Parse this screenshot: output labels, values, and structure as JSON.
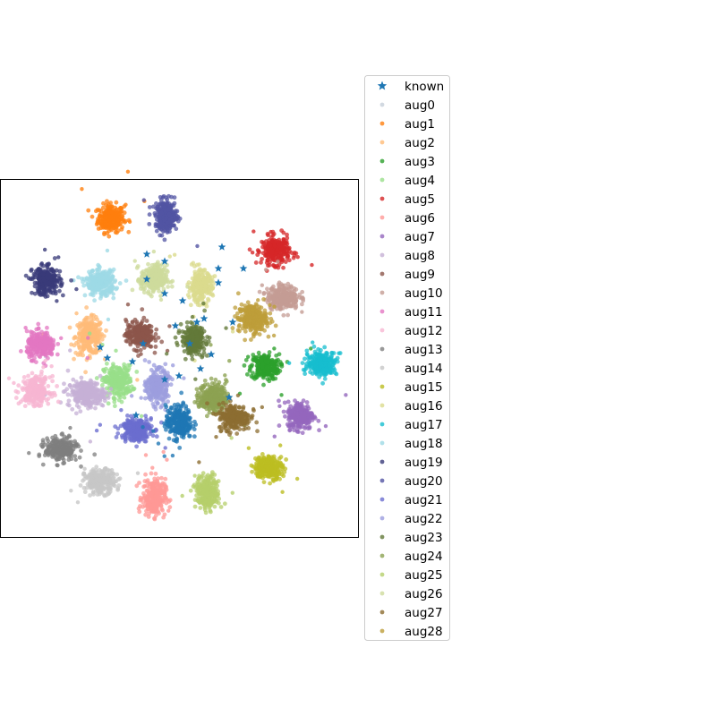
{
  "chart_data": {
    "type": "scatter",
    "title": "",
    "xlabel": "",
    "ylabel": "",
    "xlim": [
      -50,
      50
    ],
    "ylim": [
      -50,
      50
    ],
    "grid": false,
    "axis_ticks": false,
    "legend_placement": "outside right",
    "series": [
      {
        "name": "known",
        "marker": "star",
        "color": "#1f77b4",
        "points": [
          [
            -9,
            22
          ],
          [
            -4,
            27
          ],
          [
            1,
            16
          ],
          [
            11,
            21
          ],
          [
            11,
            25
          ],
          [
            15,
            10
          ],
          [
            5,
            10
          ],
          [
            -10,
            4
          ],
          [
            -20,
            0
          ],
          [
            -13,
            -1
          ],
          [
            -4,
            18
          ],
          [
            14,
            -11
          ],
          [
            -9,
            29
          ],
          [
            12,
            31
          ],
          [
            7,
            11
          ],
          [
            -1,
            9
          ],
          [
            3,
            4
          ],
          [
            -4,
            -6
          ],
          [
            18,
            25
          ],
          [
            -22,
            3
          ],
          [
            -12,
            -16
          ],
          [
            0,
            -5
          ],
          [
            6,
            -3
          ],
          [
            9,
            1
          ]
        ]
      },
      {
        "name": "aug0",
        "marker": "dot",
        "color": "#c7cfd9",
        "points": []
      },
      {
        "name": "aug1",
        "marker": "dot",
        "color": "#ff7f0e",
        "cluster": {
          "cx": -19,
          "cy": 39,
          "sx": 3.3,
          "sy": 3.5
        }
      },
      {
        "name": "aug2",
        "marker": "dot",
        "color": "#ffbb78",
        "cluster": {
          "cx": -25,
          "cy": 6,
          "sx": 3.5,
          "sy": 4.5
        }
      },
      {
        "name": "aug3",
        "marker": "dot",
        "color": "#2ca02c",
        "cluster": {
          "cx": 24,
          "cy": -2.5,
          "sx": 3.6,
          "sy": 3.2
        }
      },
      {
        "name": "aug4",
        "marker": "dot",
        "color": "#98df8a",
        "cluster": {
          "cx": -17,
          "cy": -6.5,
          "sx": 3.6,
          "sy": 4.0
        }
      },
      {
        "name": "aug5",
        "marker": "dot",
        "color": "#d62728",
        "cluster": {
          "cx": 27,
          "cy": 30,
          "sx": 3.5,
          "sy": 3.5
        }
      },
      {
        "name": "aug6",
        "marker": "dot",
        "color": "#ff9896",
        "cluster": {
          "cx": -7,
          "cy": -39,
          "sx": 2.9,
          "sy": 4.7
        }
      },
      {
        "name": "aug7",
        "marker": "dot",
        "color": "#9467bd",
        "cluster": {
          "cx": 34,
          "cy": -16,
          "sx": 3.3,
          "sy": 3.5
        }
      },
      {
        "name": "aug8",
        "marker": "dot",
        "color": "#c5b0d5",
        "cluster": {
          "cx": -26,
          "cy": -10,
          "sx": 4.6,
          "sy": 3.3
        }
      },
      {
        "name": "aug9",
        "marker": "dot",
        "color": "#8c564b",
        "cluster": {
          "cx": -11,
          "cy": 6.5,
          "sx": 3.4,
          "sy": 3.6
        }
      },
      {
        "name": "aug10",
        "marker": "dot",
        "color": "#c49c94",
        "cluster": {
          "cx": 29,
          "cy": 17,
          "sx": 4.0,
          "sy": 3.0
        }
      },
      {
        "name": "aug11",
        "marker": "dot",
        "color": "#e377c2",
        "cluster": {
          "cx": -38.5,
          "cy": 3.5,
          "sx": 3.6,
          "sy": 3.3
        }
      },
      {
        "name": "aug12",
        "marker": "dot",
        "color": "#f7b6d2",
        "cluster": {
          "cx": -40,
          "cy": -9,
          "sx": 3.6,
          "sy": 3.4
        }
      },
      {
        "name": "aug13",
        "marker": "dot",
        "color": "#7f7f7f",
        "cluster": {
          "cx": -33,
          "cy": -25.5,
          "sx": 4.0,
          "sy": 2.9
        }
      },
      {
        "name": "aug14",
        "marker": "dot",
        "color": "#c7c7c7",
        "cluster": {
          "cx": -22,
          "cy": -34.5,
          "sx": 3.9,
          "sy": 3.0
        }
      },
      {
        "name": "aug15",
        "marker": "dot",
        "color": "#bcbd22",
        "cluster": {
          "cx": 25,
          "cy": -30.5,
          "sx": 3.6,
          "sy": 2.8
        }
      },
      {
        "name": "aug16",
        "marker": "dot",
        "color": "#dbdb8d",
        "cluster": {
          "cx": 6,
          "cy": 20,
          "sx": 3.0,
          "sy": 3.9
        }
      },
      {
        "name": "aug17",
        "marker": "dot",
        "color": "#17becf",
        "cluster": {
          "cx": 40,
          "cy": -1.5,
          "sx": 3.7,
          "sy": 3.0
        }
      },
      {
        "name": "aug18",
        "marker": "dot",
        "color": "#9edae5",
        "cluster": {
          "cx": -22,
          "cy": 21,
          "sx": 3.7,
          "sy": 3.2
        }
      },
      {
        "name": "aug19",
        "marker": "dot",
        "color": "#393b79",
        "cluster": {
          "cx": -37,
          "cy": 21.5,
          "sx": 3.5,
          "sy": 3.5
        }
      },
      {
        "name": "aug20",
        "marker": "dot",
        "color": "#5254a3",
        "cluster": {
          "cx": -3.5,
          "cy": 39.5,
          "sx": 2.8,
          "sy": 4.0
        }
      },
      {
        "name": "aug21",
        "marker": "dot",
        "color": "#6b6ecf",
        "cluster": {
          "cx": -12,
          "cy": -20,
          "sx": 3.9,
          "sy": 3.0
        }
      },
      {
        "name": "aug22",
        "marker": "dot",
        "color": "#9c9ede",
        "cluster": {
          "cx": -6,
          "cy": -8,
          "sx": 2.7,
          "sy": 4.2
        }
      },
      {
        "name": "aug23",
        "marker": "dot",
        "color": "#637939",
        "cluster": {
          "cx": 4,
          "cy": 5,
          "sx": 3.0,
          "sy": 3.5
        }
      },
      {
        "name": "aug24",
        "marker": "dot",
        "color": "#8ca252",
        "cluster": {
          "cx": 9.5,
          "cy": -11,
          "sx": 3.4,
          "sy": 3.7
        }
      },
      {
        "name": "aug25",
        "marker": "dot",
        "color": "#b5cf6b",
        "cluster": {
          "cx": 8,
          "cy": -37.5,
          "sx": 2.9,
          "sy": 4.3
        }
      },
      {
        "name": "aug26",
        "marker": "dot",
        "color": "#cedb9c",
        "cluster": {
          "cx": -7,
          "cy": 22,
          "sx": 3.3,
          "sy": 3.6
        }
      },
      {
        "name": "aug27",
        "marker": "dot",
        "color": "#8c6d31",
        "cluster": {
          "cx": 15.5,
          "cy": -16.5,
          "sx": 4.1,
          "sy": 3.3
        }
      },
      {
        "name": "aug28",
        "marker": "dot",
        "color": "#bd9e39",
        "cluster": {
          "cx": 20.5,
          "cy": 11,
          "sx": 3.6,
          "sy": 3.6
        }
      },
      {
        "name": "_known_cluster",
        "legend": false,
        "marker": "dot",
        "color": "#1f77b4",
        "cluster": {
          "cx": 0,
          "cy": -18,
          "sx": 3.3,
          "sy": 4.2
        }
      }
    ]
  }
}
